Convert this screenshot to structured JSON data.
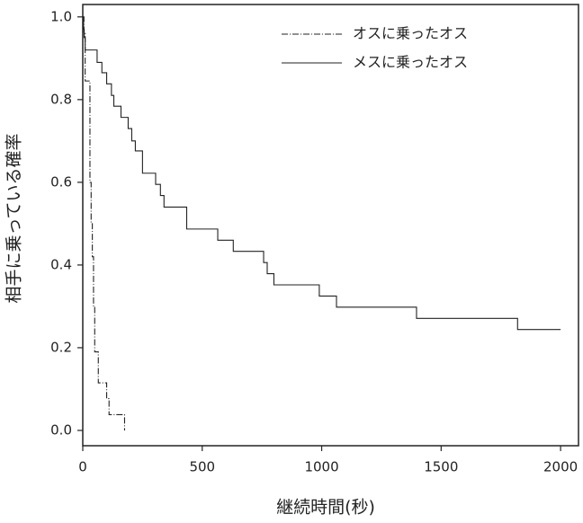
{
  "chart_data": {
    "type": "step",
    "x_label": "継続時間(秒)",
    "y_label": "相手に乗っている確率",
    "xlim": [
      0,
      2075
    ],
    "xticks": [
      0,
      500,
      1000,
      1500,
      2000
    ],
    "ylim": [
      -0.037,
      1.03
    ],
    "yticks": [
      {
        "value": 0,
        "label": "0.0"
      },
      {
        "value": 0.2,
        "label": "0.2"
      },
      {
        "value": 0.4,
        "label": "0.4"
      },
      {
        "value": 0.6,
        "label": "0.6"
      },
      {
        "value": 0.8,
        "label": "0.8"
      },
      {
        "value": 1,
        "label": "1.0"
      }
    ],
    "legend": "upper right",
    "series": [
      {
        "name": "オスに乗ったオス",
        "color": "#222222",
        "dash": "7 2 1 2",
        "x": [
          0,
          5,
          10,
          30,
          35,
          40,
          45,
          50,
          65,
          100,
          110,
          175
        ],
        "values": [
          1.0,
          0.96,
          0.845,
          0.6,
          0.5,
          0.42,
          0.3,
          0.19,
          0.115,
          0.077,
          0.038,
          0.0
        ]
      },
      {
        "name": "メスに乗ったオス",
        "color": "#222222",
        "dash": "none",
        "x": [
          0,
          3,
          6,
          10,
          60,
          80,
          100,
          120,
          130,
          160,
          190,
          205,
          220,
          250,
          305,
          325,
          340,
          435,
          565,
          630,
          757,
          772,
          800,
          990,
          1062,
          1397,
          1820,
          2000
        ],
        "values": [
          1.0,
          0.97,
          0.95,
          0.92,
          0.89,
          0.865,
          0.838,
          0.81,
          0.784,
          0.757,
          0.73,
          0.7,
          0.676,
          0.622,
          0.595,
          0.568,
          0.54,
          0.487,
          0.46,
          0.433,
          0.406,
          0.379,
          0.352,
          0.325,
          0.298,
          0.271,
          0.244,
          0.244
        ]
      }
    ]
  }
}
